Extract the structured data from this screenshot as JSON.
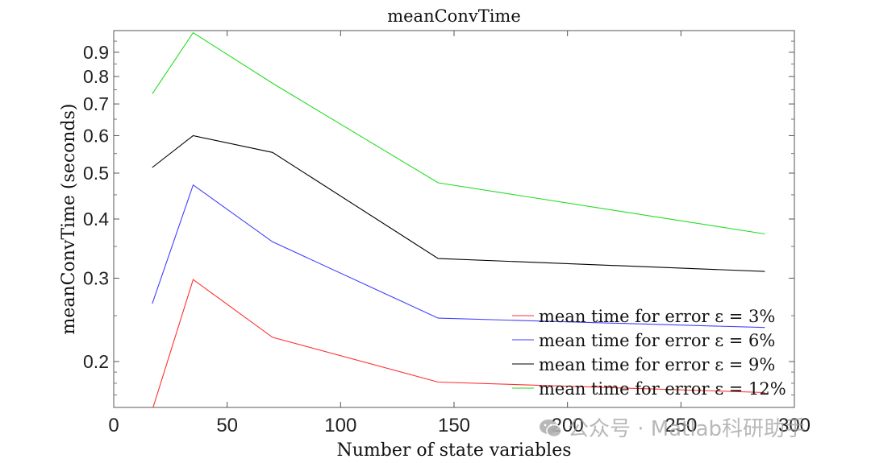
{
  "chart_data": {
    "type": "line",
    "title": "meanConvTime",
    "xlabel": "Number of state variables",
    "ylabel": "meanConvTime (seconds)",
    "xlim": [
      0,
      300
    ],
    "ylim": [
      0.16,
      1.0
    ],
    "yscale": "log",
    "x_ticks": [
      "0",
      "50",
      "100",
      "150",
      "200",
      "250",
      "300"
    ],
    "y_ticks": [
      "0.2",
      "0.3",
      "0.4",
      "0.5",
      "0.6",
      "0.7",
      "0.8",
      "0.9"
    ],
    "legend_position": "bottom-right",
    "grid": false,
    "x": [
      17,
      35,
      70,
      143,
      287
    ],
    "series": [
      {
        "name": "mean time for error ε = 3%",
        "color": "#ff3030",
        "values": [
          0.158,
          0.298,
          0.225,
          0.181,
          0.172
        ]
      },
      {
        "name": "mean time for error ε = 6%",
        "color": "#4040ff",
        "values": [
          0.265,
          0.472,
          0.358,
          0.247,
          0.236
        ]
      },
      {
        "name": "mean time for error ε = 9%",
        "color": "#000000",
        "values": [
          0.514,
          0.6,
          0.553,
          0.33,
          0.31
        ]
      },
      {
        "name": "mean time for error ε = 12%",
        "color": "#22dd22",
        "values": [
          0.735,
          0.99,
          0.774,
          0.477,
          0.372
        ]
      }
    ]
  },
  "watermark": {
    "icon": "wechat-icon",
    "text": "公众号 · Matlab科研助手"
  }
}
